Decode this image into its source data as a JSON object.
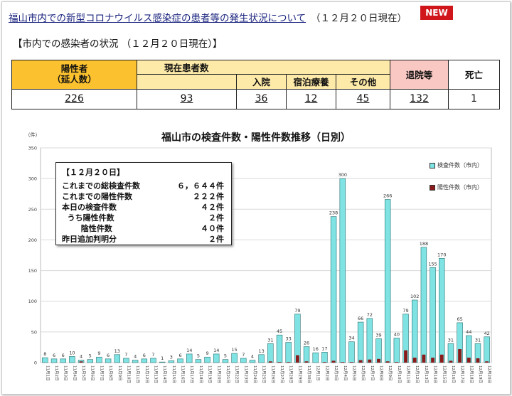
{
  "header": {
    "link_text": "福山市内での新型コロナウイルス感染症の患者等の発生状況について",
    "date_text": "（１２月２０日現在）",
    "badge": "NEW"
  },
  "section_title": "【市内での感染者の状況 （１２月２０日現在）】",
  "status_table": {
    "positive_label_1": "陽性者",
    "positive_label_2": "（延人数）",
    "current_label": "現在患者数",
    "hospital_label": "入院",
    "hotel_label": "宿泊療養",
    "other_label": "その他",
    "discharged_label": "退院等",
    "death_label": "死亡",
    "positive_value": "226",
    "current_value": "93",
    "hospital_value": "36",
    "hotel_value": "12",
    "other_value": "45",
    "discharged_value": "132",
    "death_value": "1"
  },
  "info_box": {
    "title": "【１２月２０日】",
    "rows": [
      {
        "label": "これまでの総検査件数",
        "value": "６，６４４件"
      },
      {
        "label": "これまでの陽性件数",
        "value": "２２２件"
      },
      {
        "label": "本日の検査件数",
        "value": "４２件"
      },
      {
        "label": "  うち陽性件数",
        "value": "２件"
      },
      {
        "label": "       陰性件数",
        "value": "４０件"
      },
      {
        "label": "昨日追加判明分",
        "value": "２件"
      }
    ]
  },
  "colors": {
    "tests": "#7fe3e3",
    "positives": "#8b1a1a",
    "plot_bg": "#ffffff",
    "grid": "#d9d9d9"
  },
  "chart_data": {
    "type": "bar",
    "title": "福山市の検査件数・陽性件数推移（日別）",
    "ylabel": "（件）",
    "ylim": [
      0,
      350
    ],
    "yticks": [
      0,
      50,
      100,
      150,
      200,
      250,
      300,
      350
    ],
    "grid": true,
    "legend_position": "top-right",
    "categories": [
      "11月1日",
      "11月2日",
      "11月3日",
      "11月4日",
      "11月5日",
      "11月6日",
      "11月7日",
      "11月8日",
      "11月9日",
      "11月10日",
      "11月11日",
      "11月12日",
      "11月13日",
      "11月14日",
      "11月15日",
      "11月16日",
      "11月17日",
      "11月18日",
      "11月19日",
      "11月20日",
      "11月21日",
      "11月22日",
      "11月23日",
      "11月24日",
      "11月25日",
      "11月26日",
      "11月27日",
      "11月28日",
      "11月29日",
      "11月30日",
      "12月1日",
      "12月2日",
      "12月3日",
      "12月4日",
      "12月5日",
      "12月6日",
      "12月7日",
      "12月8日",
      "12月9日",
      "12月10日",
      "12月11日",
      "12月12日",
      "12月13日",
      "12月14日",
      "12月15日",
      "12月16日",
      "12月17日",
      "12月18日",
      "12月19日",
      "12月20日"
    ],
    "series": [
      {
        "name": "検査件数（市内）",
        "values": [
          8,
          6,
          6,
          10,
          4,
          5,
          9,
          6,
          13,
          7,
          4,
          6,
          7,
          1,
          3,
          6,
          14,
          5,
          9,
          14,
          5,
          15,
          7,
          4,
          13,
          31,
          45,
          33,
          79,
          26,
          16,
          17,
          238,
          300,
          34,
          66,
          72,
          39,
          266,
          40,
          79,
          102,
          188,
          155,
          170,
          31,
          65,
          44,
          31,
          42
        ]
      },
      {
        "name": "陽性件数（市内）",
        "values": [
          0,
          0,
          0,
          0,
          2,
          0,
          0,
          0,
          0,
          0,
          0,
          0,
          0,
          0,
          0,
          0,
          0,
          0,
          0,
          0,
          0,
          0,
          0,
          0,
          0,
          2,
          1,
          1,
          12,
          2,
          0,
          1,
          3,
          1,
          1,
          4,
          5,
          6,
          2,
          1,
          20,
          8,
          13,
          8,
          13,
          3,
          22,
          8,
          7,
          2
        ]
      }
    ]
  }
}
